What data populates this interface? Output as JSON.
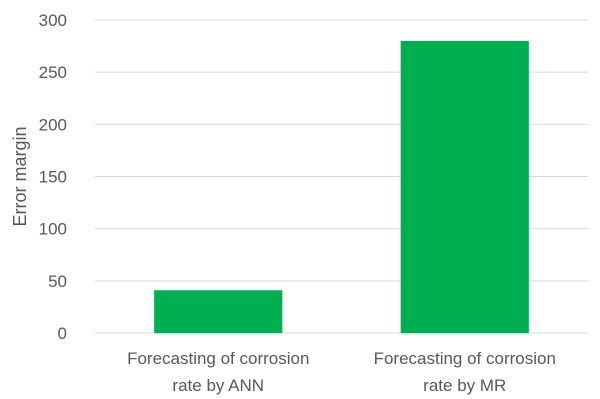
{
  "chart_data": {
    "type": "bar",
    "title": "",
    "xlabel": "",
    "ylabel": "Error margin",
    "ylim": [
      0,
      300
    ],
    "yticks": [
      0,
      50,
      100,
      150,
      200,
      250,
      300
    ],
    "grid": true,
    "legend": "none",
    "bar_color": "#00b050",
    "categories": [
      [
        "Forecasting of corrosion",
        "rate by ANN"
      ],
      [
        "Forecasting of corrosion",
        "rate by MR"
      ]
    ],
    "values": [
      41,
      280
    ]
  }
}
